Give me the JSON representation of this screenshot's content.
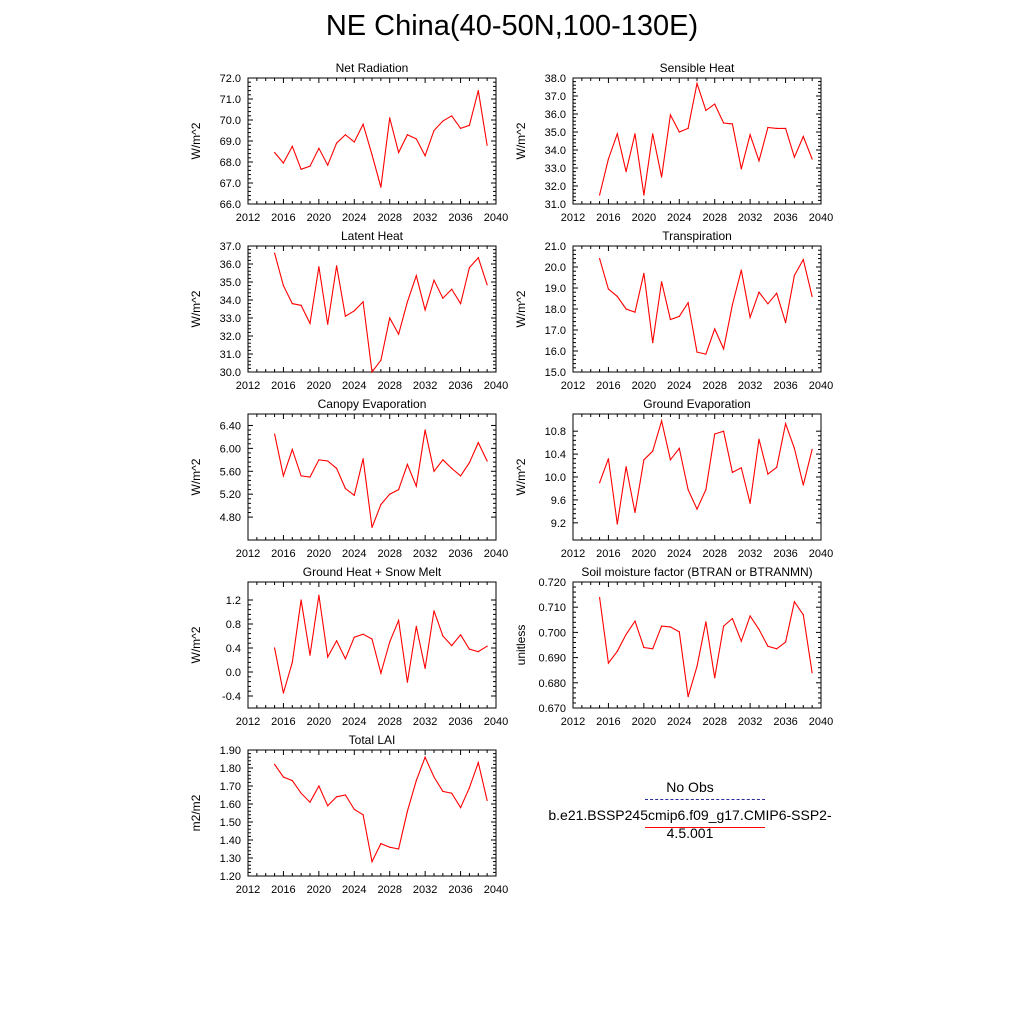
{
  "page": {
    "title": "NE China(40-50N,100-130E)"
  },
  "legend": {
    "entries": [
      {
        "label": "No Obs",
        "color": "#2b2ba0",
        "style": "dashed"
      },
      {
        "label": "b.e21.BSSP245cmip6.f09_g17.CMIP6-SSP2-4.5.001",
        "color": "#ff0000",
        "style": "solid"
      }
    ]
  },
  "chart_data": [
    {
      "type": "line",
      "title": "Net Radiation",
      "ylabel": "W/m^2",
      "xlim": [
        2012,
        2040
      ],
      "ylim": [
        66.0,
        72.0
      ],
      "xticks": [
        2012,
        2016,
        2020,
        2024,
        2028,
        2032,
        2036,
        2040
      ],
      "yticks": [
        "66.0",
        "67.0",
        "68.0",
        "69.0",
        "70.0",
        "71.0",
        "72.0"
      ],
      "color": "#ff0000",
      "x": [
        2015,
        2016,
        2017,
        2018,
        2019,
        2020,
        2021,
        2022,
        2023,
        2024,
        2025,
        2026,
        2027,
        2028,
        2029,
        2030,
        2031,
        2032,
        2033,
        2034,
        2035,
        2036,
        2037,
        2038,
        2039
      ],
      "values": [
        68.45,
        67.95,
        68.75,
        67.65,
        67.8,
        68.65,
        67.85,
        68.9,
        69.3,
        68.95,
        69.8,
        68.35,
        66.8,
        70.1,
        68.45,
        69.3,
        69.1,
        68.3,
        69.5,
        69.95,
        70.2,
        69.6,
        69.75,
        71.4,
        68.8
      ]
    },
    {
      "type": "line",
      "title": "Sensible Heat",
      "ylabel": "W/m^2",
      "xlim": [
        2012,
        2040
      ],
      "ylim": [
        31.0,
        38.0
      ],
      "xticks": [
        2012,
        2016,
        2020,
        2024,
        2028,
        2032,
        2036,
        2040
      ],
      "yticks": [
        "31.0",
        "32.0",
        "33.0",
        "34.0",
        "35.0",
        "36.0",
        "37.0",
        "38.0"
      ],
      "color": "#ff0000",
      "x": [
        2015,
        2016,
        2017,
        2018,
        2019,
        2020,
        2021,
        2022,
        2023,
        2024,
        2025,
        2026,
        2027,
        2028,
        2029,
        2030,
        2031,
        2032,
        2033,
        2034,
        2035,
        2036,
        2037,
        2038,
        2039
      ],
      "values": [
        31.5,
        33.5,
        34.9,
        32.8,
        34.9,
        31.5,
        34.9,
        32.5,
        35.95,
        35.0,
        35.2,
        37.7,
        36.2,
        36.55,
        35.5,
        35.45,
        32.95,
        34.85,
        33.4,
        35.25,
        35.2,
        35.2,
        33.6,
        34.75,
        33.5
      ]
    },
    {
      "type": "line",
      "title": "Latent Heat",
      "ylabel": "W/m^2",
      "xlim": [
        2012,
        2040
      ],
      "ylim": [
        30.0,
        37.0
      ],
      "xticks": [
        2012,
        2016,
        2020,
        2024,
        2028,
        2032,
        2036,
        2040
      ],
      "yticks": [
        "30.0",
        "31.0",
        "32.0",
        "33.0",
        "34.0",
        "35.0",
        "36.0",
        "37.0"
      ],
      "color": "#ff0000",
      "x": [
        2015,
        2016,
        2017,
        2018,
        2019,
        2020,
        2021,
        2022,
        2023,
        2024,
        2025,
        2026,
        2027,
        2028,
        2029,
        2030,
        2031,
        2032,
        2033,
        2034,
        2035,
        2036,
        2037,
        2038,
        2039
      ],
      "values": [
        36.6,
        34.8,
        33.8,
        33.7,
        32.7,
        35.85,
        32.65,
        35.9,
        33.1,
        33.4,
        33.9,
        30.0,
        30.65,
        33.0,
        32.1,
        33.9,
        35.35,
        33.45,
        35.1,
        34.1,
        34.6,
        33.8,
        35.8,
        36.35,
        34.85
      ]
    },
    {
      "type": "line",
      "title": "Transpiration",
      "ylabel": "W/m^2",
      "xlim": [
        2012,
        2040
      ],
      "ylim": [
        15.0,
        21.0
      ],
      "xticks": [
        2012,
        2016,
        2020,
        2024,
        2028,
        2032,
        2036,
        2040
      ],
      "yticks": [
        "15.0",
        "16.0",
        "17.0",
        "18.0",
        "19.0",
        "20.0",
        "21.0"
      ],
      "color": "#ff0000",
      "x": [
        2015,
        2016,
        2017,
        2018,
        2019,
        2020,
        2021,
        2022,
        2023,
        2024,
        2025,
        2026,
        2027,
        2028,
        2029,
        2030,
        2031,
        2032,
        2033,
        2034,
        2035,
        2036,
        2037,
        2038,
        2039
      ],
      "values": [
        20.4,
        18.95,
        18.6,
        18.0,
        17.85,
        19.7,
        16.4,
        19.3,
        17.5,
        17.65,
        18.3,
        15.95,
        15.85,
        17.05,
        16.1,
        18.2,
        19.85,
        17.6,
        18.8,
        18.25,
        18.75,
        17.35,
        19.6,
        20.35,
        18.6
      ]
    },
    {
      "type": "line",
      "title": "Canopy Evaporation",
      "ylabel": "W/m^2",
      "xlim": [
        2012,
        2040
      ],
      "ylim": [
        4.4,
        6.6
      ],
      "xticks": [
        2012,
        2016,
        2020,
        2024,
        2028,
        2032,
        2036,
        2040
      ],
      "yticks": [
        "4.80",
        "5.20",
        "5.60",
        "6.00",
        "6.40"
      ],
      "color": "#ff0000",
      "x": [
        2015,
        2016,
        2017,
        2018,
        2019,
        2020,
        2021,
        2022,
        2023,
        2024,
        2025,
        2026,
        2027,
        2028,
        2029,
        2030,
        2031,
        2032,
        2033,
        2034,
        2035,
        2036,
        2037,
        2038,
        2039
      ],
      "values": [
        6.25,
        5.52,
        5.98,
        5.52,
        5.5,
        5.8,
        5.78,
        5.65,
        5.3,
        5.18,
        5.82,
        4.62,
        5.02,
        5.2,
        5.28,
        5.72,
        5.34,
        6.32,
        5.6,
        5.8,
        5.65,
        5.52,
        5.75,
        6.1,
        5.78
      ]
    },
    {
      "type": "line",
      "title": "Ground Evaporation",
      "ylabel": "W/m^2",
      "xlim": [
        2012,
        2040
      ],
      "ylim": [
        8.9,
        11.1
      ],
      "xticks": [
        2012,
        2016,
        2020,
        2024,
        2028,
        2032,
        2036,
        2040
      ],
      "yticks": [
        "9.2",
        "9.6",
        "10.0",
        "10.4",
        "10.8"
      ],
      "color": "#ff0000",
      "x": [
        2015,
        2016,
        2017,
        2018,
        2019,
        2020,
        2021,
        2022,
        2023,
        2024,
        2025,
        2026,
        2027,
        2028,
        2029,
        2030,
        2031,
        2032,
        2033,
        2034,
        2035,
        2036,
        2037,
        2038,
        2039
      ],
      "values": [
        9.9,
        10.32,
        9.18,
        10.18,
        9.38,
        10.3,
        10.45,
        10.98,
        10.3,
        10.5,
        9.78,
        9.44,
        9.78,
        10.75,
        10.8,
        10.08,
        10.16,
        9.54,
        10.66,
        10.05,
        10.17,
        10.93,
        10.5,
        9.86,
        10.48
      ]
    },
    {
      "type": "line",
      "title": "Ground Heat + Snow Melt",
      "ylabel": "W/m^2",
      "xlim": [
        2012,
        2040
      ],
      "ylim": [
        -0.6,
        1.5
      ],
      "xticks": [
        2012,
        2016,
        2020,
        2024,
        2028,
        2032,
        2036,
        2040
      ],
      "yticks": [
        "-0.4",
        "0.0",
        "0.4",
        "0.8",
        "1.2"
      ],
      "color": "#ff0000",
      "x": [
        2015,
        2016,
        2017,
        2018,
        2019,
        2020,
        2021,
        2022,
        2023,
        2024,
        2025,
        2026,
        2027,
        2028,
        2029,
        2030,
        2031,
        2032,
        2033,
        2034,
        2035,
        2036,
        2037,
        2038,
        2039
      ],
      "values": [
        0.4,
        -0.35,
        0.16,
        1.2,
        0.28,
        1.28,
        0.25,
        0.52,
        0.22,
        0.58,
        0.63,
        0.55,
        -0.02,
        0.5,
        0.86,
        -0.17,
        0.76,
        0.06,
        1.02,
        0.6,
        0.44,
        0.62,
        0.38,
        0.34,
        0.43
      ]
    },
    {
      "type": "line",
      "title": "Soil moisture factor (BTRAN or BTRANMN)",
      "ylabel": "unitless",
      "xlim": [
        2012,
        2040
      ],
      "ylim": [
        0.67,
        0.72
      ],
      "xticks": [
        2012,
        2016,
        2020,
        2024,
        2028,
        2032,
        2036,
        2040
      ],
      "yticks": [
        "0.670",
        "0.680",
        "0.690",
        "0.700",
        "0.710",
        "0.720"
      ],
      "color": "#ff0000",
      "x": [
        2015,
        2016,
        2017,
        2018,
        2019,
        2020,
        2021,
        2022,
        2023,
        2024,
        2025,
        2026,
        2027,
        2028,
        2029,
        2030,
        2031,
        2032,
        2033,
        2034,
        2035,
        2036,
        2037,
        2038,
        2039
      ],
      "values": [
        0.7138,
        0.6878,
        0.6925,
        0.6992,
        0.7045,
        0.694,
        0.6935,
        0.7025,
        0.7022,
        0.7002,
        0.6745,
        0.6865,
        0.7042,
        0.682,
        0.7025,
        0.7055,
        0.6965,
        0.7065,
        0.7012,
        0.6945,
        0.6935,
        0.6962,
        0.7122,
        0.707,
        0.684
      ]
    },
    {
      "type": "line",
      "title": "Total LAI",
      "ylabel": "m2/m2",
      "xlim": [
        2012,
        2040
      ],
      "ylim": [
        1.2,
        1.9
      ],
      "xticks": [
        2012,
        2016,
        2020,
        2024,
        2028,
        2032,
        2036,
        2040
      ],
      "yticks": [
        "1.20",
        "1.30",
        "1.40",
        "1.50",
        "1.60",
        "1.70",
        "1.80",
        "1.90"
      ],
      "color": "#ff0000",
      "x": [
        2015,
        2016,
        2017,
        2018,
        2019,
        2020,
        2021,
        2022,
        2023,
        2024,
        2025,
        2026,
        2027,
        2028,
        2029,
        2030,
        2031,
        2032,
        2033,
        2034,
        2035,
        2036,
        2037,
        2038,
        2039
      ],
      "values": [
        1.82,
        1.75,
        1.73,
        1.66,
        1.61,
        1.7,
        1.59,
        1.64,
        1.65,
        1.57,
        1.54,
        1.28,
        1.38,
        1.36,
        1.35,
        1.56,
        1.73,
        1.86,
        1.75,
        1.67,
        1.66,
        1.58,
        1.69,
        1.83,
        1.62
      ]
    }
  ]
}
